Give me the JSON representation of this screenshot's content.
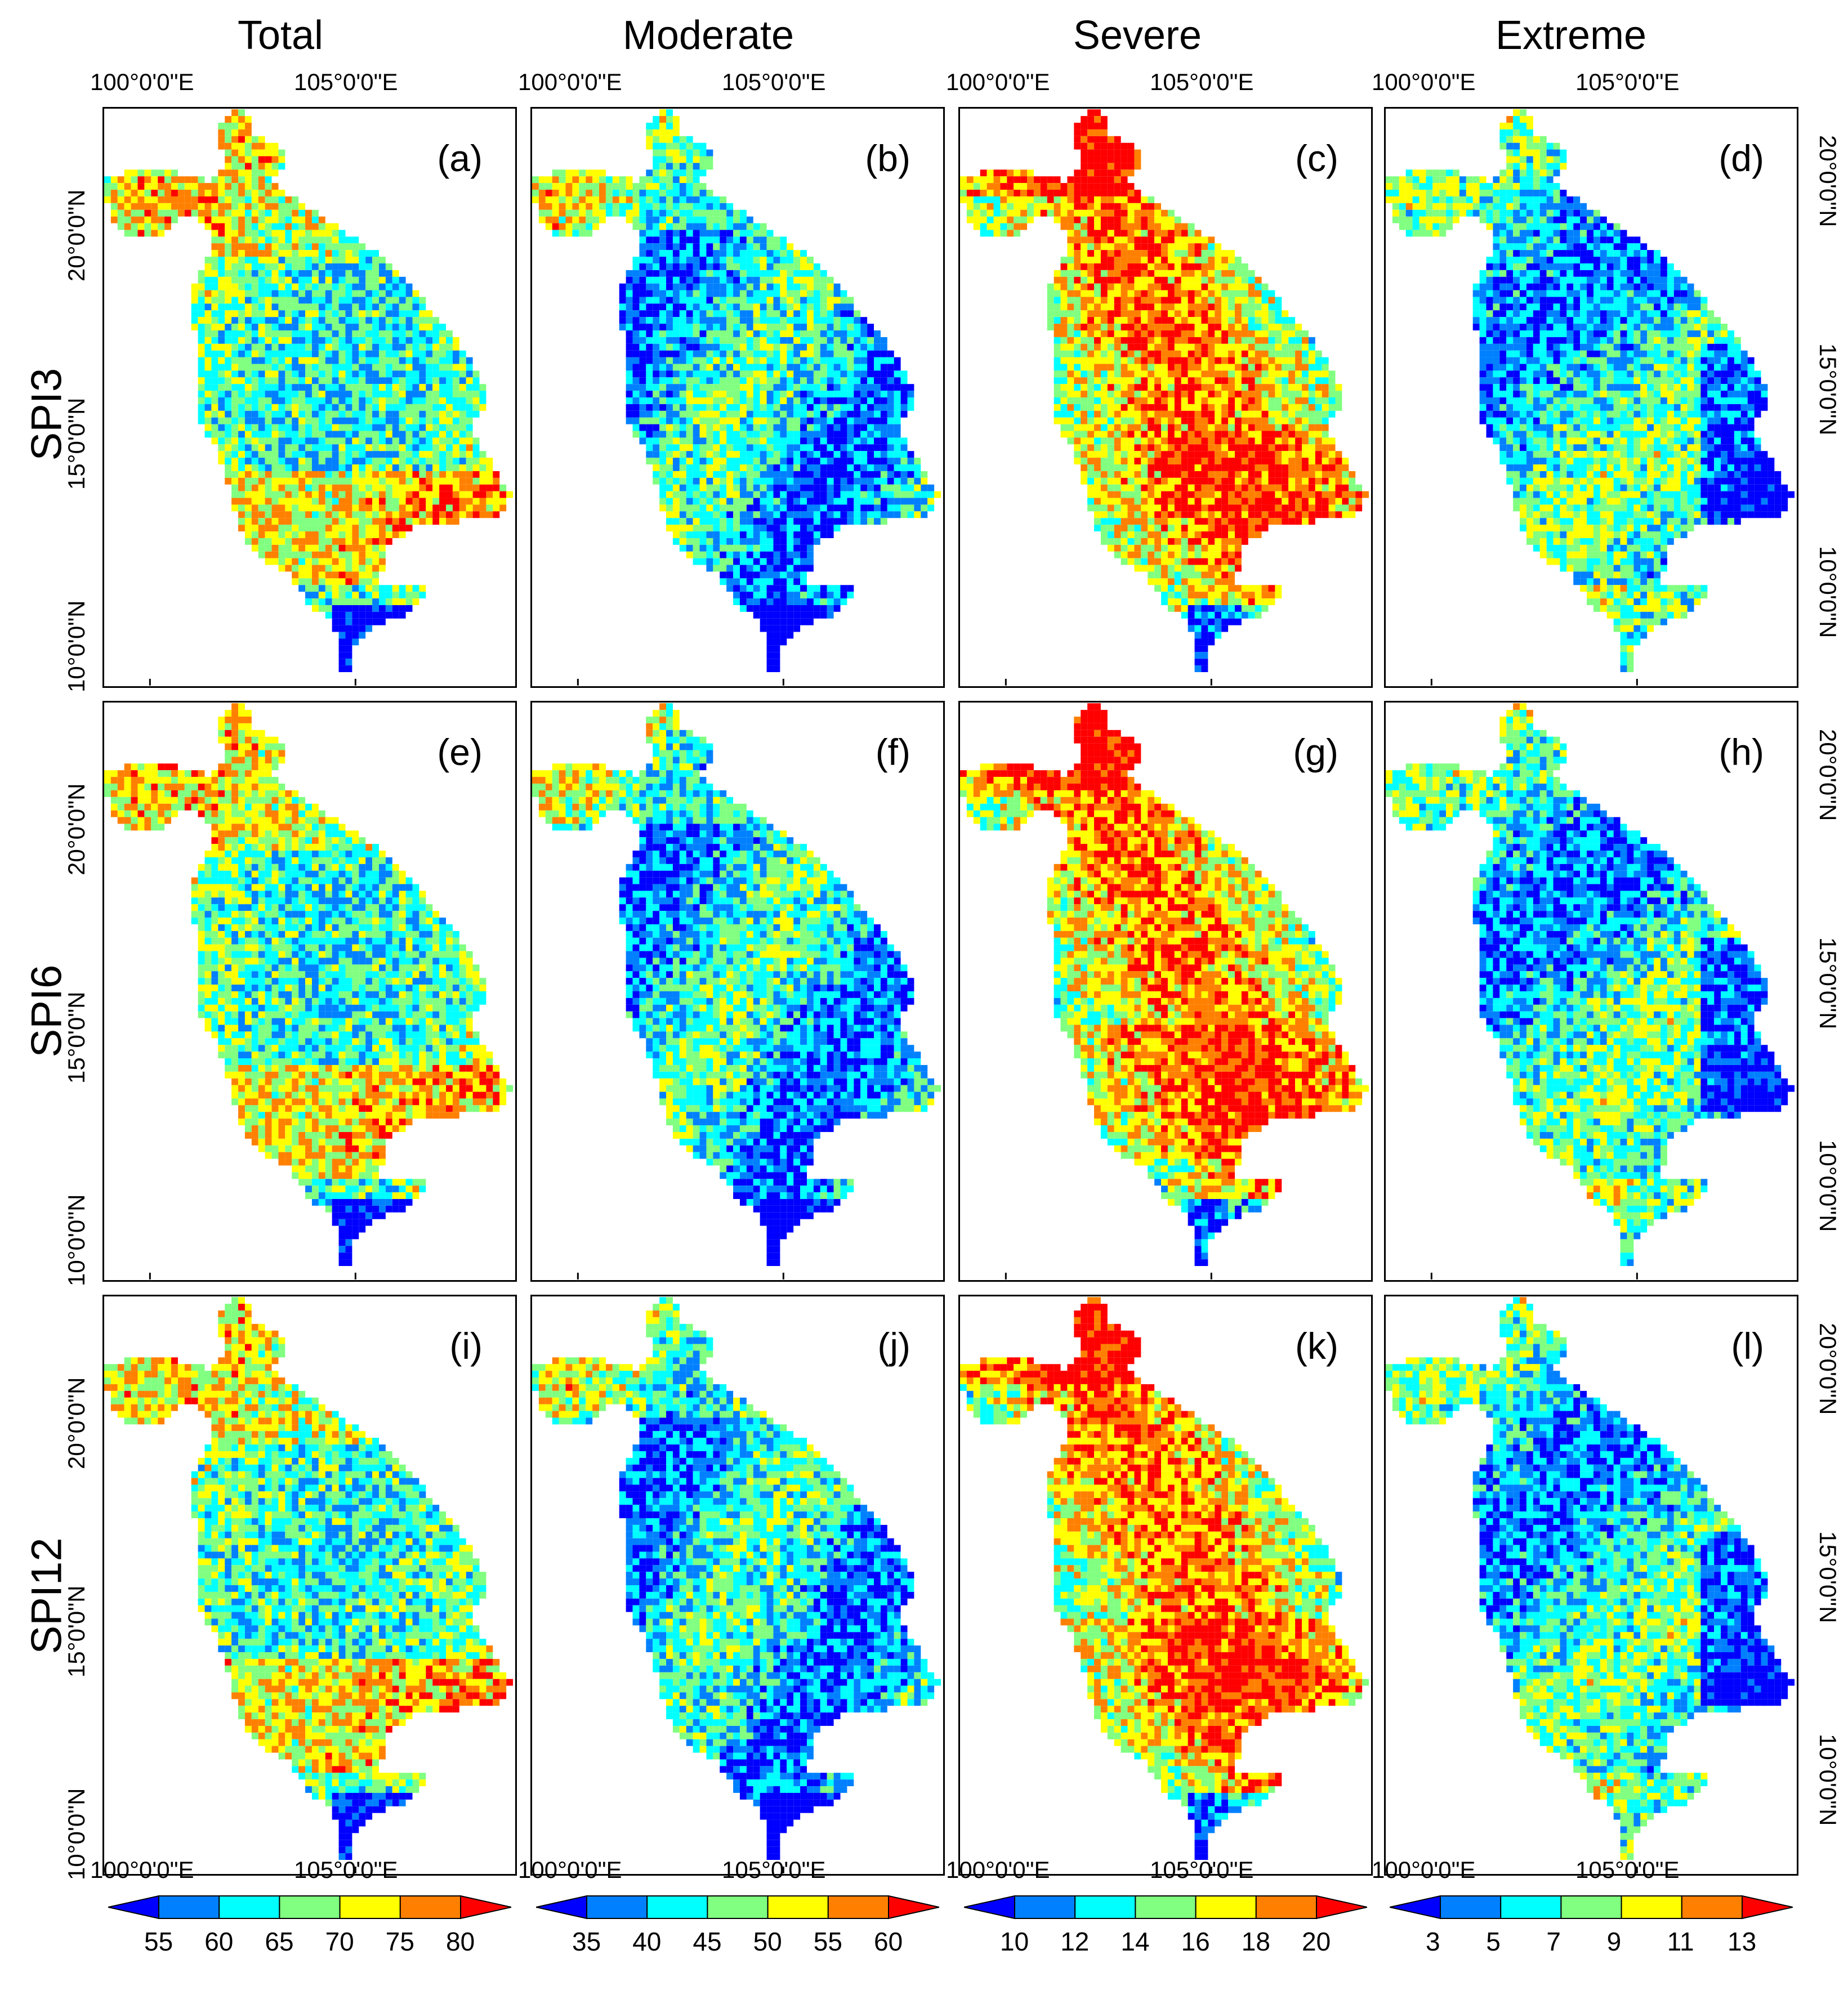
{
  "columns": [
    {
      "title": "Total"
    },
    {
      "title": "Moderate"
    },
    {
      "title": "Severe"
    },
    {
      "title": "Extreme"
    }
  ],
  "rows": [
    {
      "title": "SPI3",
      "panels": [
        "(a)",
        "(b)",
        "(c)",
        "(d)"
      ]
    },
    {
      "title": "SPI6",
      "panels": [
        "(e)",
        "(f)",
        "(g)",
        "(h)"
      ]
    },
    {
      "title": "SPI12",
      "panels": [
        "(i)",
        "(j)",
        "(k)",
        "(l)"
      ]
    }
  ],
  "axes": {
    "lon_ticks": [
      "100°0'0\"E",
      "105°0'0\"E"
    ],
    "lat_ticks": [
      "20°0'0\"N",
      "15°0'0\"N",
      "10°0'0\"N"
    ]
  },
  "colorbars": [
    {
      "labels": [
        "55",
        "60",
        "65",
        "70",
        "75",
        "80"
      ]
    },
    {
      "labels": [
        "35",
        "40",
        "45",
        "50",
        "55",
        "60"
      ]
    },
    {
      "labels": [
        "10",
        "12",
        "14",
        "16",
        "18",
        "20"
      ]
    },
    {
      "labels": [
        "3",
        "5",
        "7",
        "9",
        "11",
        "13"
      ]
    }
  ],
  "palette": [
    "#0000ff",
    "#0080ff",
    "#00ffff",
    "#80ff80",
    "#ffff00",
    "#ff8000",
    "#ff0000"
  ],
  "map_pattern": {
    "(a)": "warm-south",
    "(b)": "cool",
    "(c)": "hot",
    "(d)": "cool-east",
    "(e)": "warm-south",
    "(f)": "cool",
    "(g)": "hot",
    "(h)": "cool-east",
    "(i)": "warm-south",
    "(j)": "cool",
    "(k)": "hot",
    "(l)": "cool-east"
  }
}
